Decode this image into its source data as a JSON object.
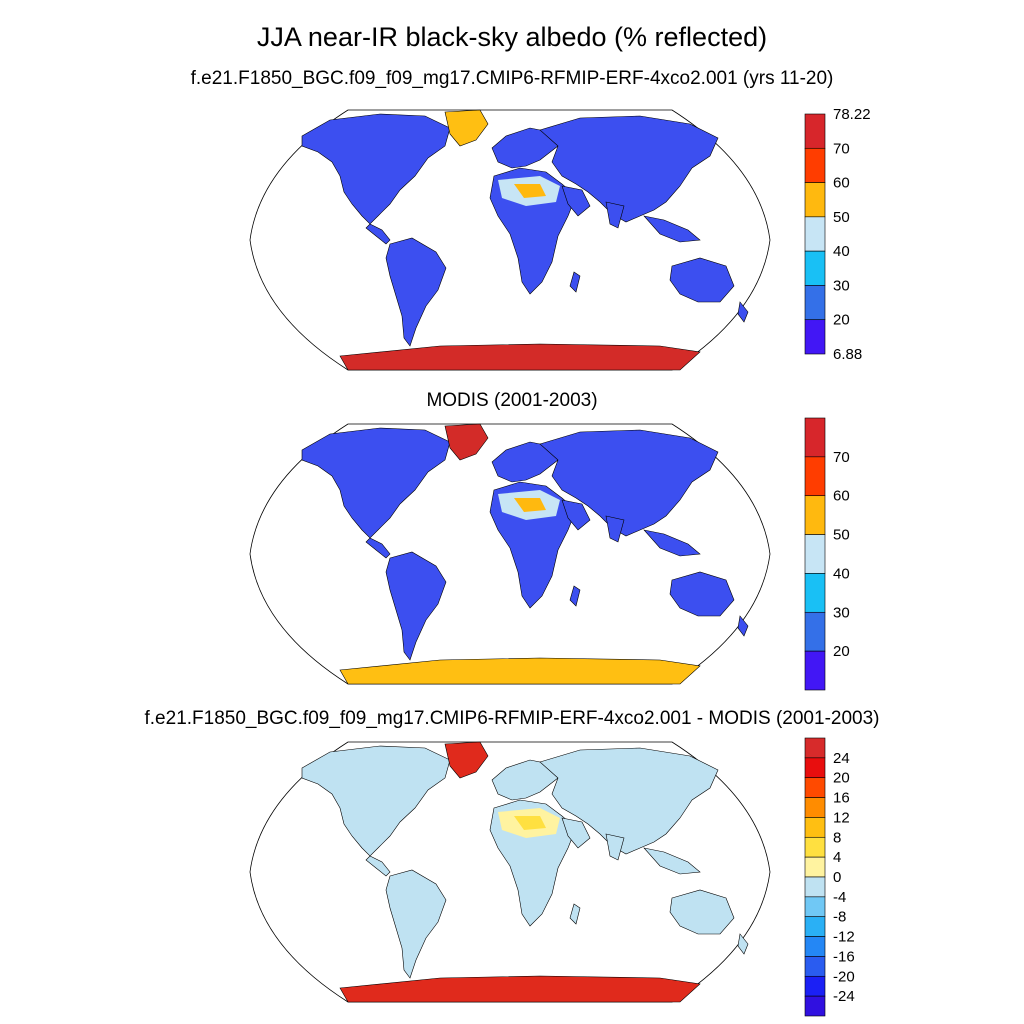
{
  "title": "JJA near-IR black-sky albedo (% reflected)",
  "panels": [
    {
      "subtitle": "f.e21.F1850_BGC.f09_f09_mg17.CMIP6-RFMIP-ERF-4xco2.001 (yrs 11-20)",
      "colorbar": {
        "labels": [
          "78.22",
          "70",
          "60",
          "50",
          "40",
          "30",
          "20",
          "6.88"
        ],
        "colors": [
          "#d7262b",
          "#ff3d00",
          "#ffb90f",
          "#c7e5f5",
          "#19c0f5",
          "#3470e8",
          "#4217f5"
        ]
      },
      "land_color": "#3c4ff0",
      "antarctica_color": "#d32b28",
      "greenland_color": "#ffbf12"
    },
    {
      "subtitle": "MODIS (2001-2003)",
      "colorbar": {
        "labels": [
          "70",
          "60",
          "50",
          "40",
          "30",
          "20"
        ],
        "colors": [
          "#d7262b",
          "#ff3d00",
          "#ffb90f",
          "#c7e5f5",
          "#19c0f5",
          "#3470e8",
          "#4217f5"
        ]
      },
      "land_color": "#3c4ff0",
      "antarctica_color": "#ffbf12",
      "greenland_color": "#d32b28"
    },
    {
      "subtitle": "f.e21.F1850_BGC.f09_f09_mg17.CMIP6-RFMIP-ERF-4xco2.001 - MODIS (2001-2003)",
      "colorbar": {
        "labels": [
          "24",
          "20",
          "16",
          "12",
          "8",
          "4",
          "0",
          "-4",
          "-8",
          "-12",
          "-16",
          "-20",
          "-24"
        ],
        "colors": [
          "#d72b2b",
          "#e80e0e",
          "#ff4a00",
          "#ff8c00",
          "#ffbf12",
          "#ffe040",
          "#fff3a0",
          "#bfe2f2",
          "#70c8f5",
          "#2ab0f5",
          "#2487f5",
          "#2a5cf0",
          "#1b20f5",
          "#3010e0"
        ]
      },
      "land_color": "#bfe2f2",
      "antarctica_color": "#e02a1c",
      "greenland_color": "#e02a1c"
    }
  ]
}
